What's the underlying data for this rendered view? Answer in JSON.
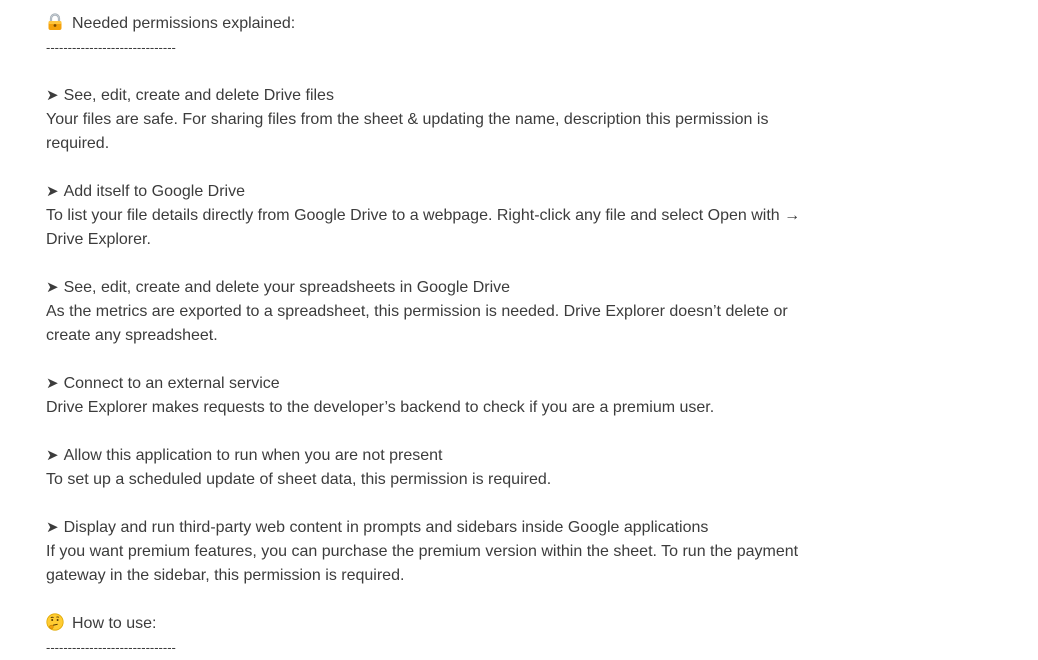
{
  "permissions_section": {
    "heading": "Needed permissions explained:",
    "heading_icon": "lock-icon",
    "divider": "------------------------------",
    "arrow_glyph": "➤",
    "items": [
      {
        "title": "See, edit, create and delete Drive files",
        "lines": [
          "Your files are safe. For sharing files from the sheet & updating the name, description this permission is",
          "required."
        ]
      },
      {
        "title": "Add itself to Google Drive",
        "lines": [
          "To list your file details directly from Google Drive to a webpage. Right-click any file and select Open with →",
          "Drive Explorer."
        ]
      },
      {
        "title": "See, edit, create and delete your spreadsheets in Google Drive",
        "lines": [
          "As the metrics are exported to a spreadsheet, this permission is needed. Drive Explorer doesn’t delete or",
          "create any spreadsheet."
        ]
      },
      {
        "title": "Connect to an external service",
        "lines": [
          "Drive Explorer makes requests to the developer’s backend to check if you are a premium user."
        ]
      },
      {
        "title": "Allow this application to run when you are not present",
        "lines": [
          "To set up a scheduled update of sheet data, this permission is required."
        ]
      },
      {
        "title": "Display and run third-party web content in prompts and sidebars inside Google applications",
        "lines": [
          "If you want premium features, you can purchase the premium version within the sheet. To run the payment",
          "gateway in the sidebar, this permission is required."
        ]
      }
    ]
  },
  "how_to_use_section": {
    "heading": "How to use:",
    "heading_icon": "thinking-face-icon",
    "divider": "------------------------------"
  }
}
